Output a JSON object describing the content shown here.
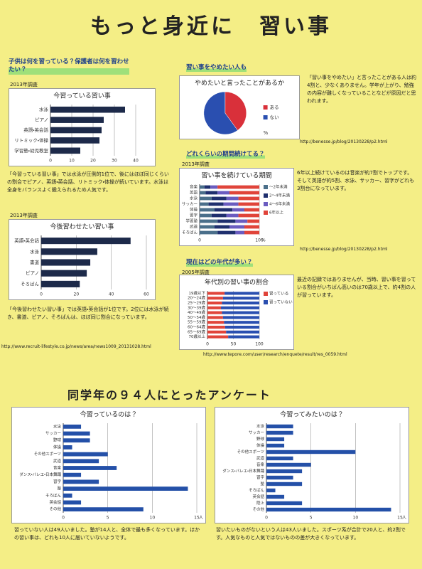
{
  "header": {
    "title": "もっと身近に　習い事"
  },
  "headings": [
    "子供は何を習っている？保護者は何を習わせたい？",
    "習い事をやめたい人も",
    "どれくらいの期間続けてる？",
    "現在はどの年代が多い？"
  ],
  "survey_title": "同学年の９４人にとったアンケート",
  "paragraphs": [
    "「今習っている習い事」では水泳が圧倒的1位で、後にはほぼ同じくらいの割合でピアノ、英語・英会話、リトミック・体操が続いています。水泳は全身をバランスよく鍛えられるため人気です。",
    "「今後習わせたい習い事」では英語・英会話が1位です。2位には水泳が続き、書道、ピアノ、そろばんは、ほぼ同じ割合になっています。",
    "「習い事をやめたい」と言ったことがある人は約4割と、少なくありません。学年が上がり、勉強の内容が難しくなっていることなどが原因だと思われます。",
    "6年以上続けているのは音楽が約7割でトップです。そして英語が約5割、水泳、サッカー、習字がどれも3割台になっています。",
    "最近の記録ではありませんが、当時、習い事を習っている割合がいちばん高いのは70歳以上で、約4割の人が習っています。",
    "習っていない人は49人いました。塾が14人と、全体で最も多くなっています。ほかの習い事は、どれも10人に届いていないようです。",
    "習いたいものがないという人は43人いました。スポーツ系が合計で20人と、約2割です。人気なものと人気ではないものの差が大きくなっています。"
  ],
  "sources": [
    "http://www.recruit-lifestyle.co.jp/news/area/news1009_20131028.html",
    "http://benesse.jp/blog/20130228/p2.html",
    "http://www.tepore.com/user/research/enquete/result/res_0059.html"
  ],
  "chart_data": [
    {
      "type": "barh",
      "title": "今習っている習い事",
      "note": "2013年調査",
      "color": "#1d2a4a",
      "categories": [
        "水泳",
        "ピアノ",
        "英語・英会話",
        "リトミック・体操",
        "学習塾・幼児教室"
      ],
      "values": [
        35,
        25,
        24,
        23,
        14
      ],
      "xlim": [
        0,
        45
      ],
      "xticks": [
        0,
        10,
        20,
        30,
        40
      ]
    },
    {
      "type": "barh",
      "title": "今後習わせたい習い事",
      "note": "2013年調査",
      "color": "#1d2a4a",
      "categories": [
        "英語・英会話",
        "水泳",
        "書道",
        "ピアノ",
        "そろばん"
      ],
      "values": [
        51,
        32,
        28,
        26,
        22
      ],
      "xlim": [
        0,
        60
      ],
      "xticks": [
        0,
        20,
        40,
        60
      ]
    },
    {
      "type": "pie",
      "title": "やめたいと言ったことがあるか",
      "unit_label": "%",
      "categories": [
        "ある",
        "ない"
      ],
      "values": [
        40,
        60
      ],
      "colors": [
        "#d9303a",
        "#2a4fb0"
      ]
    },
    {
      "type": "stacked_barh",
      "title": "習い事を続けている期間",
      "note": "2013年調査",
      "xlabel": "%",
      "categories": [
        "音楽",
        "英語",
        "水泳",
        "サッカー",
        "体操",
        "習字",
        "学習塾",
        "武道",
        "そろばん"
      ],
      "series": [
        {
          "name": "～2年未満",
          "color": "#4a6f8a",
          "values": [
            8,
            10,
            20,
            15,
            25,
            20,
            30,
            25,
            30
          ]
        },
        {
          "name": "2～4年未満",
          "color": "#1f2f6e",
          "values": [
            10,
            20,
            25,
            25,
            30,
            25,
            30,
            25,
            30
          ]
        },
        {
          "name": "4～6年未満",
          "color": "#6a5cc0",
          "values": [
            12,
            20,
            20,
            25,
            20,
            20,
            20,
            25,
            15
          ]
        },
        {
          "name": "6年以上",
          "color": "#e0443a",
          "values": [
            70,
            50,
            35,
            35,
            25,
            35,
            20,
            25,
            25
          ]
        }
      ],
      "xlim": [
        0,
        100
      ],
      "xticks": [
        0,
        100
      ]
    },
    {
      "type": "stacked_barh",
      "title": "年代別の習い事の割合",
      "note": "2005年調査",
      "categories": [
        "19歳以下",
        "20～24歳",
        "25～29歳",
        "30～39歳",
        "40～49歳",
        "50～54歳",
        "55～59歳",
        "60～64歳",
        "65～69歳",
        "70歳以上"
      ],
      "series": [
        {
          "name": "習っている",
          "color": "#e0443a",
          "values": [
            33,
            30,
            28,
            26,
            28,
            30,
            32,
            34,
            36,
            40
          ]
        },
        {
          "name": "習っていない",
          "color": "#2a4fb0",
          "values": [
            67,
            70,
            72,
            74,
            72,
            70,
            68,
            66,
            64,
            60
          ]
        }
      ],
      "xlim": [
        0,
        100
      ],
      "xticks": [
        0,
        50,
        100
      ]
    },
    {
      "type": "barh",
      "title": "今習っているのは？",
      "xlabel": "人",
      "color": "#2450a8",
      "categories": [
        "水泳",
        "サッカー",
        "野球",
        "体操",
        "その他スポーツ",
        "武道",
        "音楽",
        "ダンス・バレエ・日本舞踊",
        "習字",
        "塾",
        "そろばん",
        "英会話",
        "その他"
      ],
      "values": [
        2,
        3,
        3,
        1,
        5,
        4,
        6,
        2,
        4,
        14,
        1,
        2,
        9
      ],
      "xlim": [
        0,
        15
      ],
      "xticks": [
        0,
        5,
        10,
        15
      ]
    },
    {
      "type": "barh",
      "title": "今習ってみたいのは？",
      "xlabel": "人",
      "color": "#2450a8",
      "categories": [
        "水泳",
        "サッカー",
        "野球",
        "体操",
        "その他スポーツ",
        "武道",
        "音楽",
        "ダンス・バレエ・日本舞踊",
        "習字",
        "塾",
        "そろばん",
        "英会話",
        "陸上",
        "その他"
      ],
      "values": [
        3,
        3,
        2,
        2,
        10,
        3,
        5,
        4,
        3,
        4,
        1,
        2,
        4,
        14
      ],
      "xlim": [
        0,
        15
      ],
      "xticks": [
        0,
        5,
        10,
        15
      ]
    }
  ]
}
